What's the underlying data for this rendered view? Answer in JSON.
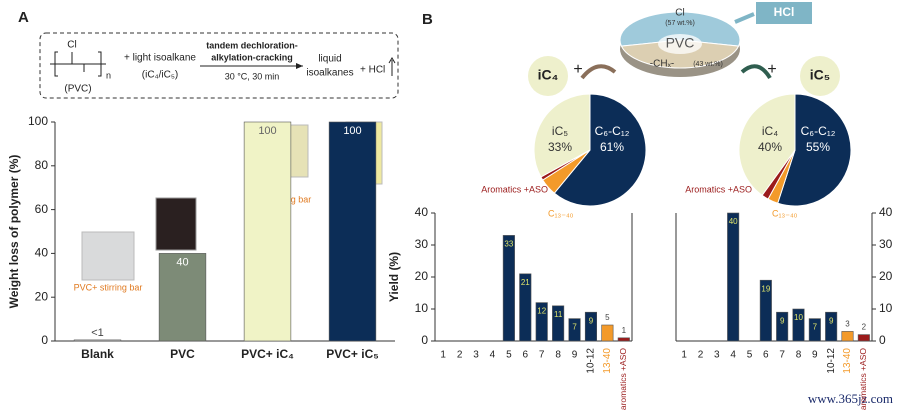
{
  "panel_labels": [
    "A",
    "B"
  ],
  "scheme": {
    "substituent": "Cl",
    "repeat": "n",
    "polymer": "(PVC)",
    "reactant": "+ light isoalkane",
    "reactant_detail": "(iC₄/iC₅)",
    "arrow_top": [
      "tandem dechloration-",
      "alkylation-cracking"
    ],
    "arrow_bottom": "30 °C, 30 min",
    "product": [
      "liquid",
      "isoalkanes"
    ],
    "byproduct": "+ HCl"
  },
  "process": {
    "hcl": "HCl",
    "left_feed": "iC₄",
    "right_feed": "iC₅",
    "plus": "+"
  },
  "annotations": [
    "PVC+ stirring bar",
    "stirring bar"
  ],
  "watermark": "www.365jz.com",
  "chart_data": [
    {
      "type": "bar",
      "categories": [
        "Blank",
        "PVC",
        "PVC+ iC₄",
        "PVC+ iC₅"
      ],
      "values": [
        0.5,
        40,
        100,
        100
      ],
      "value_labels": [
        "<1",
        "40",
        "100",
        "100"
      ],
      "colors": [
        "#c8c8c8",
        "#7d8b77",
        "#f0f3c6",
        "#0c2d57"
      ],
      "y_label": "Weight loss of polymer (%)",
      "ylim": [
        0,
        100
      ],
      "yticks": [
        0,
        20,
        40,
        60,
        80,
        100
      ]
    },
    {
      "type": "pie",
      "categories": [
        "C₆-C₁₂",
        "C₁₃₋₄₀",
        "Aromatics +ASO",
        "iC₅"
      ],
      "values": [
        61,
        5,
        1,
        33
      ],
      "value_labels": [
        "61%",
        null,
        null,
        "33%"
      ],
      "colors": [
        "#0c2d57",
        "#f39a2a",
        "#9b1b1b",
        "#eef0cc"
      ]
    },
    {
      "type": "pie",
      "categories": [
        "C₆-C₁₂",
        "C₁₃₋₄₀",
        "Aromatics +ASO",
        "iC₄"
      ],
      "values": [
        55,
        3,
        2,
        40
      ],
      "value_labels": [
        "55%",
        null,
        null,
        "40%"
      ],
      "colors": [
        "#0c2d57",
        "#f39a2a",
        "#9b1b1b",
        "#eef0cc"
      ]
    },
    {
      "type": "pie",
      "title": "PVC",
      "categories": [
        "Cl",
        "-CHₓ-"
      ],
      "values": [
        57,
        43
      ],
      "value_labels": [
        "(57 wt.%)",
        "(43 wt.%)"
      ],
      "colors": [
        "#9fcadb",
        "#dccfb2"
      ]
    },
    {
      "type": "bar",
      "categories": [
        "1",
        "2",
        "3",
        "4",
        "5",
        "6",
        "7",
        "8",
        "9",
        "10-12",
        "13-40",
        "aromatics +ASO"
      ],
      "values": [
        0,
        0,
        0,
        0,
        33,
        21,
        12,
        11,
        7,
        9,
        5,
        1
      ],
      "colors": [
        "#0c2d57",
        "#0c2d57",
        "#0c2d57",
        "#0c2d57",
        "#0c2d57",
        "#0c2d57",
        "#0c2d57",
        "#0c2d57",
        "#0c2d57",
        "#0c2d57",
        "#f39a2a",
        "#9b1b1b"
      ],
      "y_label": "Yield (%)",
      "axis_side": "left",
      "ylim": [
        0,
        40
      ],
      "yticks": [
        0,
        10,
        20,
        30,
        40
      ]
    },
    {
      "type": "bar",
      "categories": [
        "1",
        "2",
        "3",
        "4",
        "5",
        "6",
        "7",
        "8",
        "9",
        "10-12",
        "13-40",
        "aromatics +ASO"
      ],
      "values": [
        0,
        0,
        0,
        40,
        0,
        19,
        9,
        10,
        7,
        9,
        3,
        2
      ],
      "colors": [
        "#0c2d57",
        "#0c2d57",
        "#0c2d57",
        "#0c2d57",
        "#0c2d57",
        "#0c2d57",
        "#0c2d57",
        "#0c2d57",
        "#0c2d57",
        "#0c2d57",
        "#f39a2a",
        "#9b1b1b"
      ],
      "axis_side": "right",
      "ylim": [
        0,
        40
      ],
      "yticks": [
        0,
        10,
        20,
        30,
        40
      ]
    }
  ]
}
